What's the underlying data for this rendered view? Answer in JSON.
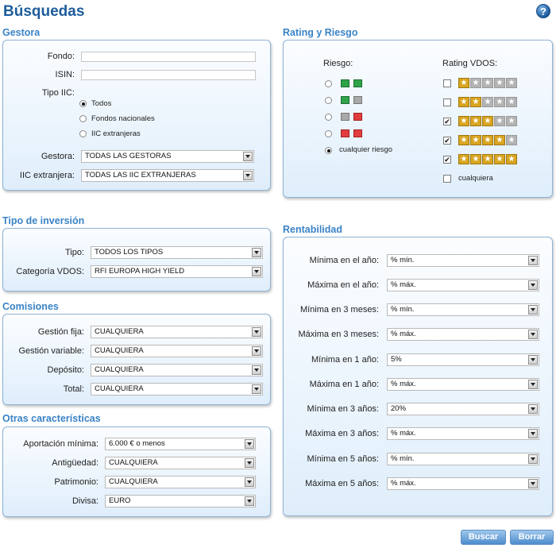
{
  "page_title": "Búsquedas",
  "help_icon": "?",
  "gestora": {
    "title": "Gestora",
    "fondo_label": "Fondo:",
    "fondo_value": "",
    "isin_label": "ISIN:",
    "isin_value": "",
    "tipo_iic_label": "Tipo IIC:",
    "tipo_iic_options": [
      "Todos",
      "Fondos nacionales",
      "IIC extranjeras"
    ],
    "tipo_iic_selected": "Todos",
    "gestora_label": "Gestora:",
    "gestora_value": "TODAS LAS GESTORAS",
    "iic_ext_label": "IIC extranjera:",
    "iic_ext_value": "TODAS LAS IIC EXTRANJERAS"
  },
  "rating": {
    "title": "Rating y Riesgo",
    "riesgo_label": "Riesgo:",
    "riesgo_options": [
      {
        "colors": [
          "green",
          "green"
        ]
      },
      {
        "colors": [
          "green",
          "gray"
        ]
      },
      {
        "colors": [
          "gray",
          "red"
        ]
      },
      {
        "colors": [
          "red",
          "red"
        ]
      },
      {
        "label": "cualquier riesgo",
        "selected": true
      }
    ],
    "rating_label": "Rating VDOS:",
    "rating_options": [
      {
        "stars": 1,
        "checked": false
      },
      {
        "stars": 2,
        "checked": false
      },
      {
        "stars": 3,
        "checked": true
      },
      {
        "stars": 4,
        "checked": true
      },
      {
        "stars": 5,
        "checked": true
      },
      {
        "label": "cualquiera",
        "checked": false
      }
    ],
    "colors": {
      "gold": "#d9a520",
      "grey": "#b3b3b3",
      "green": "#2fa34a",
      "red": "#e23d3d"
    }
  },
  "tipo_inversion": {
    "title": "Tipo de inversión",
    "tipo_label": "Tipo:",
    "tipo_value": "TODOS LOS TIPOS",
    "categoria_label": "Categoría VDOS:",
    "categoria_value": "RFI EUROPA HIGH YIELD"
  },
  "comisiones": {
    "title": "Comisiones",
    "rows": [
      {
        "label": "Gestión fija:",
        "value": "CUALQUIERA"
      },
      {
        "label": "Gestión variable:",
        "value": "CUALQUIERA"
      },
      {
        "label": "Depósito:",
        "value": "CUALQUIERA"
      },
      {
        "label": "Total:",
        "value": "CUALQUIERA"
      }
    ]
  },
  "otras": {
    "title": "Otras características",
    "rows": [
      {
        "label": "Aportación mínima:",
        "value": "6.000 € o menos"
      },
      {
        "label": "Antigüedad:",
        "value": "CUALQUIERA"
      },
      {
        "label": "Patrimonio:",
        "value": "CUALQUIERA"
      },
      {
        "label": "Divisa:",
        "value": "EURO"
      }
    ]
  },
  "rentabilidad": {
    "title": "Rentabilidad",
    "rows": [
      {
        "label": "Mínima en el año:",
        "value": "% mín."
      },
      {
        "label": "Máxima en el año:",
        "value": "% máx."
      },
      {
        "label": "Mínima en 3 meses:",
        "value": "% mín."
      },
      {
        "label": "Máxima en 3 meses:",
        "value": "% máx."
      },
      {
        "label": "Mínima en 1 año:",
        "value": "5%"
      },
      {
        "label": "Máxima en 1 año:",
        "value": "% máx."
      },
      {
        "label": "Mínima en 3 años:",
        "value": "20%"
      },
      {
        "label": "Máxima en 3 años:",
        "value": "% máx."
      },
      {
        "label": "Mínima en 5 años:",
        "value": "% mín."
      },
      {
        "label": "Máxima en 5 años:",
        "value": "% máx."
      }
    ]
  },
  "buttons": {
    "buscar": "Buscar",
    "borrar": "Borrar"
  }
}
